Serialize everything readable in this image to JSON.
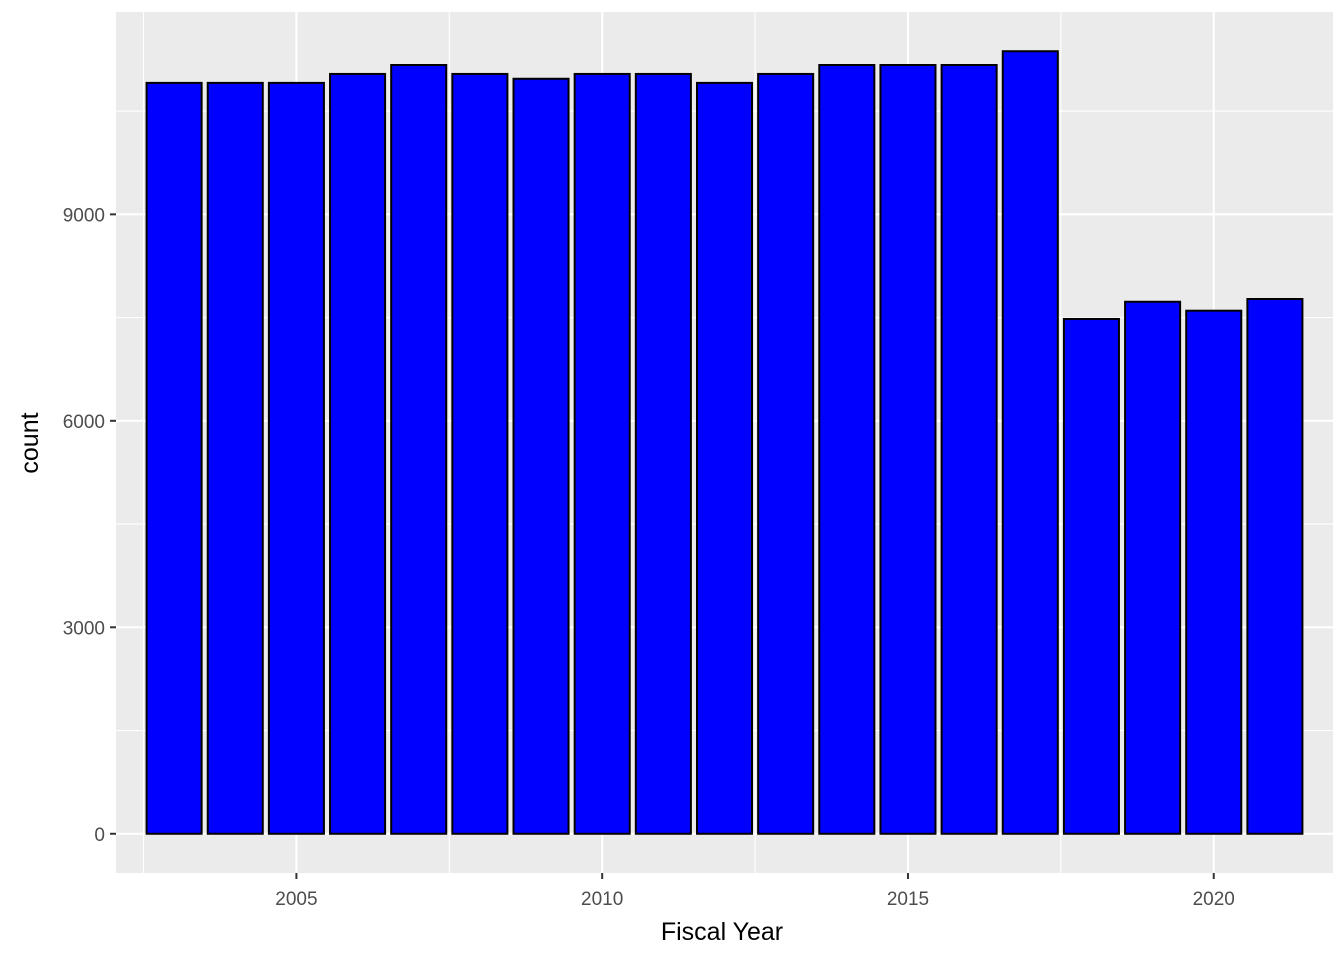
{
  "chart_data": {
    "type": "bar",
    "xlabel": "Fiscal Year",
    "ylabel": "count",
    "categories": [
      2003,
      2004,
      2005,
      2006,
      2007,
      2008,
      2009,
      2010,
      2011,
      2012,
      2013,
      2014,
      2015,
      2016,
      2017,
      2018,
      2019,
      2020,
      2021
    ],
    "values": [
      10910,
      10910,
      10910,
      11040,
      11170,
      11040,
      10970,
      11040,
      11040,
      10910,
      11040,
      11170,
      11170,
      11170,
      11370,
      7480,
      7730,
      7600,
      7770
    ],
    "x_ticks": [
      2005,
      2010,
      2015,
      2020
    ],
    "x_tick_labels": [
      "2005",
      "2010",
      "2015",
      "2020"
    ],
    "y_ticks": [
      0,
      3000,
      6000,
      9000
    ],
    "y_tick_labels": [
      "0",
      "3000",
      "6000",
      "9000"
    ],
    "xlim": [
      2002.05,
      2021.95
    ],
    "ylim": [
      -570,
      11940
    ],
    "grid": true,
    "colors": {
      "bar_fill": "#0000ff",
      "bar_outline": "#000000",
      "panel_background": "#ebebeb",
      "grid_line": "#ffffff"
    }
  }
}
